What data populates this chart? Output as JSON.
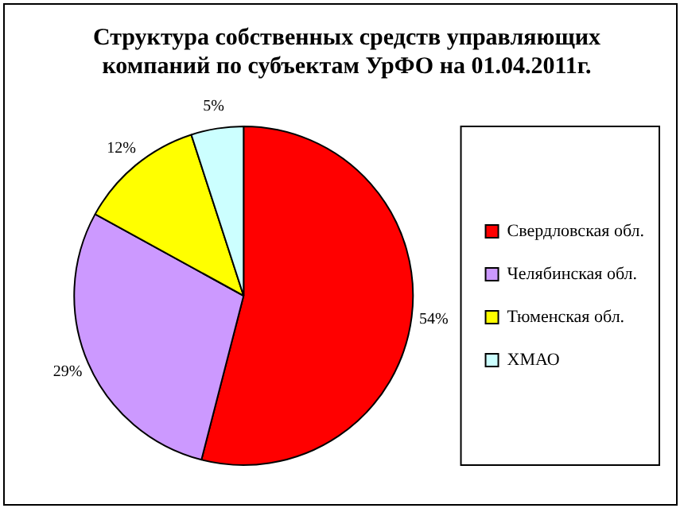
{
  "chart_data": {
    "type": "pie",
    "title": "Структура собственных средств управляющих компаний по субъектам УрФО на 01.04.2011г.",
    "categories": [
      "Свердловская обл.",
      "Челябинская обл.",
      "Тюменская обл.",
      "ХМАО"
    ],
    "values": [
      54,
      29,
      12,
      5
    ],
    "colors": [
      "#ff0000",
      "#cc99ff",
      "#ffff00",
      "#ccffff"
    ],
    "value_labels": [
      "54%",
      "29%",
      "12%",
      "5%"
    ],
    "legend": "right"
  }
}
